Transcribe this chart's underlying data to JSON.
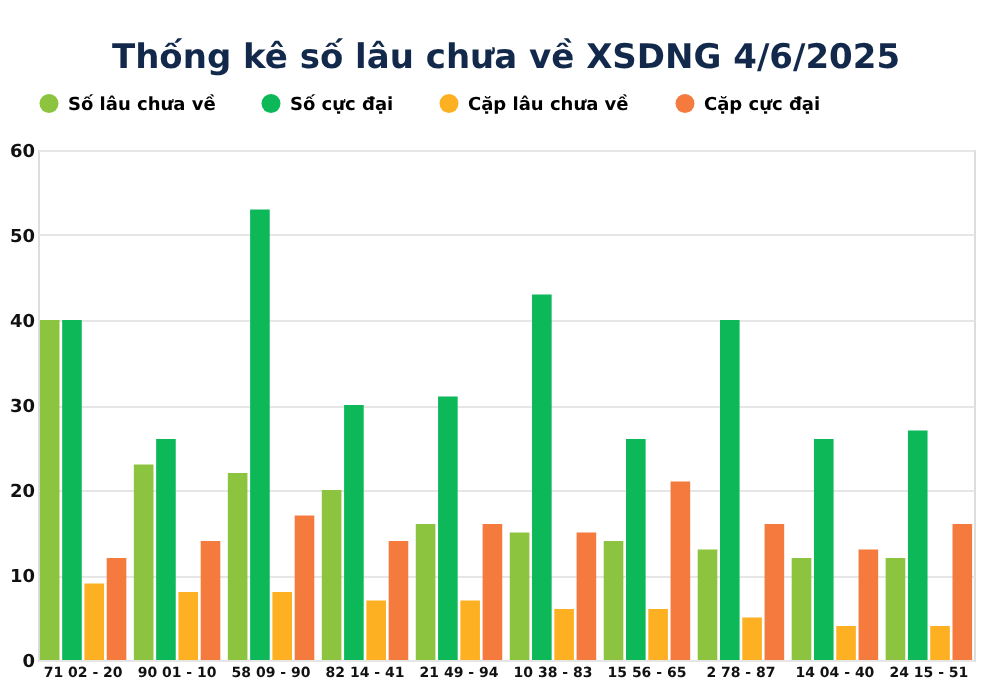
{
  "chart_data": {
    "type": "bar",
    "title": "Thống kê số lâu chưa về XSDNG 4/6/2025",
    "categories": [
      "71 02 - 20",
      "90 01 - 10",
      "58 09 - 90",
      "82 14 - 41",
      "21 49 - 94",
      "10 38 - 83",
      "15 56 - 65",
      "2 78 - 87",
      "14 04 - 40",
      "24 15 - 51"
    ],
    "series": [
      {
        "name": "Số lâu chưa về",
        "color": "#8cc43f",
        "values": [
          40,
          23,
          22,
          20,
          16,
          15,
          14,
          13,
          12,
          12
        ]
      },
      {
        "name": "Số cực đại",
        "color": "#0cb858",
        "values": [
          40,
          26,
          53,
          30,
          31,
          43,
          26,
          40,
          26,
          27
        ]
      },
      {
        "name": "Cặp lâu chưa về",
        "color": "#fdb022",
        "values": [
          9,
          8,
          8,
          7,
          7,
          6,
          6,
          5,
          4,
          4
        ]
      },
      {
        "name": "Cặp cực đại",
        "color": "#f47a3e",
        "values": [
          12,
          14,
          17,
          14,
          16,
          15,
          21,
          16,
          13,
          16
        ]
      }
    ],
    "ylim": [
      0,
      60
    ],
    "yticks": [
      0,
      10,
      20,
      30,
      40,
      50,
      60
    ],
    "grid": "y",
    "legend": "top"
  }
}
